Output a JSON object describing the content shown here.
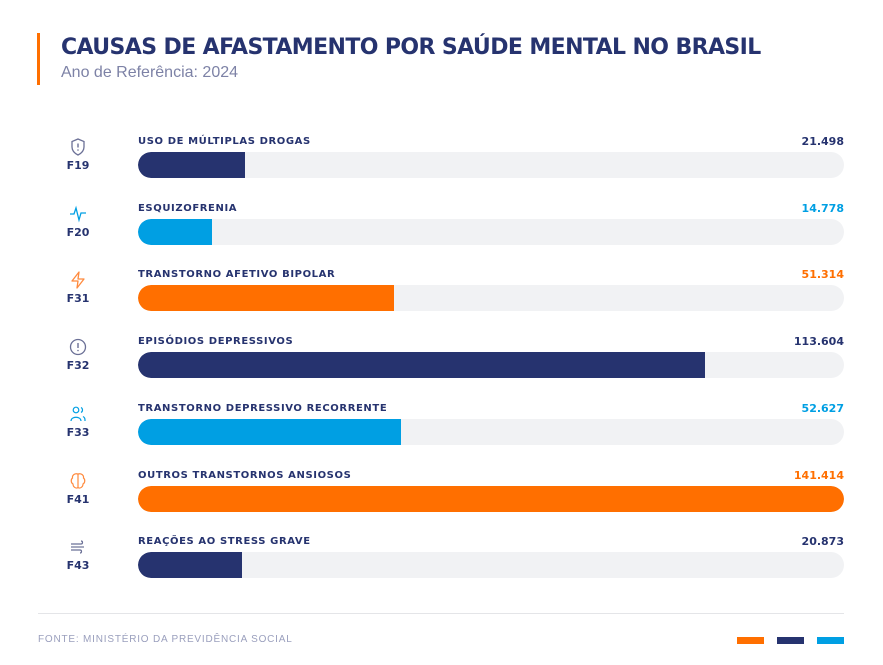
{
  "header": {
    "title": "CAUSAS DE AFASTAMENTO POR SAÚDE MENTAL NO BRASIL",
    "subtitle": "Ano de Referência: 2024"
  },
  "colors": {
    "navy": "#26336f",
    "blue": "#009fe3",
    "orange": "#ff6f00",
    "track": "#f1f2f4"
  },
  "chart_data": {
    "type": "bar",
    "orientation": "horizontal",
    "title": "CAUSAS DE AFASTAMENTO POR SAÚDE MENTAL NO BRASIL",
    "subtitle": "Ano de Referência: 2024",
    "xlim": [
      0,
      141414
    ],
    "grid": false,
    "items": [
      {
        "code": "F19",
        "label": "USO DE MÚLTIPLAS DROGAS",
        "value": 21498,
        "display": "21.498",
        "color": "navy",
        "icon": "shield-alert-icon"
      },
      {
        "code": "F20",
        "label": "ESQUIZOFRENIA",
        "value": 14778,
        "display": "14.778",
        "color": "blue",
        "icon": "pulse-icon"
      },
      {
        "code": "F31",
        "label": "TRANSTORNO AFETIVO BIPOLAR",
        "value": 51314,
        "display": "51.314",
        "color": "orange",
        "icon": "lightning-icon"
      },
      {
        "code": "F32",
        "label": "EPISÓDIOS DEPRESSIVOS",
        "value": 113604,
        "display": "113.604",
        "color": "navy",
        "icon": "alert-circle-icon"
      },
      {
        "code": "F33",
        "label": "TRANSTORNO DEPRESSIVO RECORRENTE",
        "value": 52627,
        "display": "52.627",
        "color": "blue",
        "icon": "users-icon"
      },
      {
        "code": "F41",
        "label": "OUTROS TRANSTORNOS ANSIOSOS",
        "value": 141414,
        "display": "141.414",
        "color": "orange",
        "icon": "brain-icon"
      },
      {
        "code": "F43",
        "label": "REAÇÕES AO STRESS GRAVE",
        "value": 20873,
        "display": "20.873",
        "color": "navy",
        "icon": "wind-icon"
      }
    ]
  },
  "footer": {
    "source": "FONTE: MINISTÉRIO DA PREVIDÊNCIA SOCIAL",
    "legend_swatches": [
      "orange",
      "navy",
      "blue"
    ]
  }
}
